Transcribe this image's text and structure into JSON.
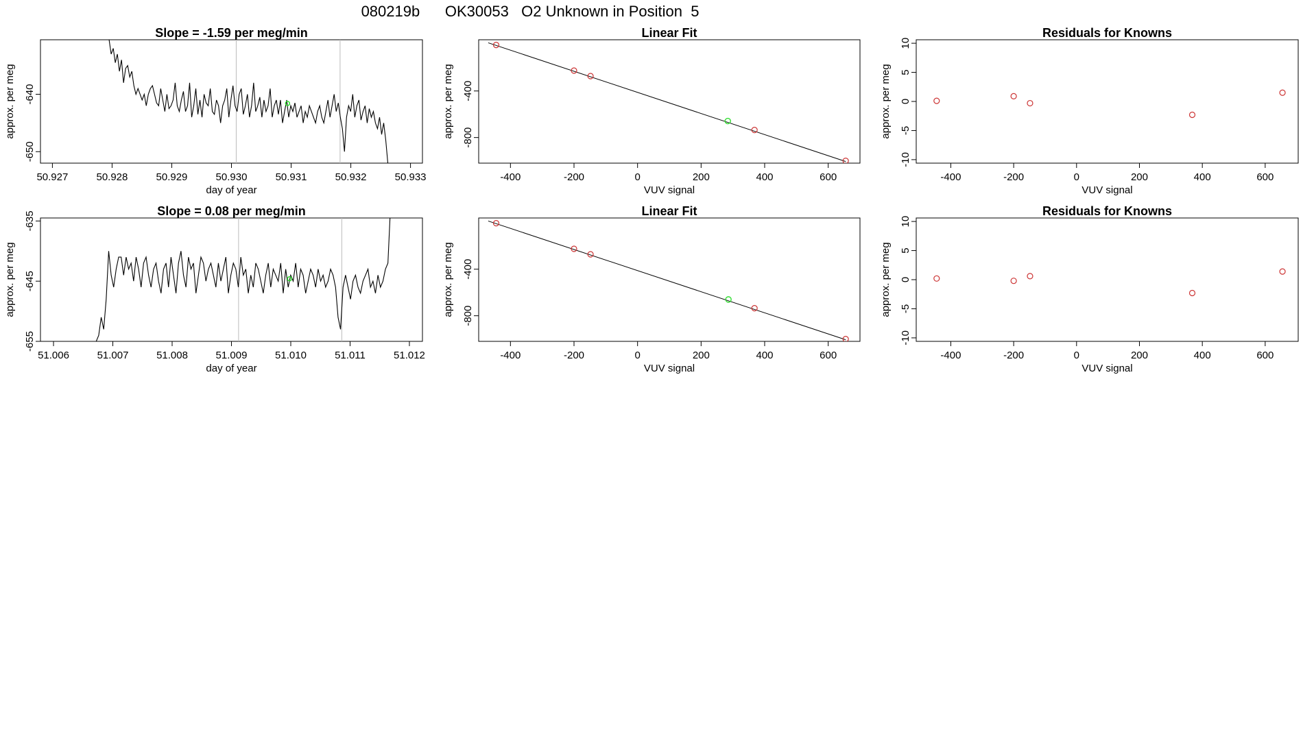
{
  "figure_title": "080219b      OK30053   O2 Unknown in Position  5",
  "colors": {
    "line": "#000000",
    "known": "#cc3333",
    "unknown": "#33dd33",
    "event_line": "#bbbbbb",
    "fit_line": "#000000"
  },
  "chart_data": [
    {
      "id": "ts1",
      "type": "line",
      "title": "Slope =  -1.59  per meg/min",
      "xlabel": "day of year",
      "ylabel": "approx. per meg",
      "xlim": [
        50.9268,
        50.9332
      ],
      "ylim": [
        -652,
        -630.5
      ],
      "xticks": [
        "50.927",
        "50.928",
        "50.929",
        "50.930",
        "50.931",
        "50.932",
        "50.933"
      ],
      "yticks": [
        "-640",
        "-650"
      ],
      "event_lines_x": [
        50.93008,
        50.93182
      ],
      "unknown_marker": {
        "x": 50.93094,
        "y": -641.6
      },
      "series": [
        {
          "x_start": 50.92795,
          "x_end": 50.93262,
          "values": [
            -630.5,
            -633,
            -632,
            -634.5,
            -633,
            -636,
            -634,
            -638,
            -635.5,
            -635,
            -637,
            -636,
            -638.5,
            -640,
            -639,
            -640,
            -641,
            -640,
            -642,
            -640,
            -639,
            -638.5,
            -640,
            -641.5,
            -642,
            -639,
            -641,
            -643,
            -640,
            -642.5,
            -642,
            -641,
            -638,
            -642,
            -643,
            -641,
            -639.5,
            -643,
            -642,
            -638,
            -644,
            -642,
            -639,
            -643.5,
            -641,
            -644,
            -640,
            -641.5,
            -642,
            -639,
            -643,
            -643.5,
            -641,
            -642,
            -645,
            -642,
            -641,
            -639,
            -644,
            -641,
            -638.5,
            -642,
            -643,
            -640,
            -639,
            -643.5,
            -642,
            -640,
            -644,
            -642,
            -638,
            -643,
            -642,
            -640.5,
            -644,
            -641,
            -643,
            -642,
            -639,
            -644,
            -642,
            -641,
            -643.5,
            -641,
            -645,
            -643,
            -641,
            -644,
            -642,
            -643,
            -641.5,
            -644,
            -643,
            -642,
            -645,
            -643,
            -644,
            -642,
            -643,
            -644,
            -645,
            -643,
            -642,
            -644,
            -645,
            -643,
            -641,
            -644,
            -642,
            -640,
            -643,
            -641.5,
            -644,
            -646,
            -650,
            -644,
            -642,
            -643,
            -640,
            -644,
            -642,
            -641,
            -644.5,
            -643,
            -642,
            -645,
            -642.5,
            -644,
            -643,
            -645,
            -646,
            -644,
            -647,
            -645,
            -648,
            -652
          ]
        }
      ]
    },
    {
      "id": "fit1",
      "type": "scatter",
      "title": "Linear Fit",
      "xlabel": "VUV signal",
      "ylabel": "approx. per meg",
      "xlim": [
        -500,
        700
      ],
      "ylim": [
        -1020,
        40
      ],
      "xticks": [
        "-400",
        "-200",
        "0",
        "200",
        "400",
        "600"
      ],
      "yticks": [
        "-400",
        "-800"
      ],
      "fit_line": {
        "x": [
          -470,
          655
        ],
        "y": [
          14,
          -1006
        ]
      },
      "known_points": {
        "x": [
          -445,
          -200,
          -148,
          368,
          655
        ],
        "y": [
          -5,
          -225,
          -272,
          -735,
          -1000
        ]
      },
      "unknown_points": {
        "x": [
          284
        ],
        "y": [
          -658
        ]
      }
    },
    {
      "id": "res1",
      "type": "scatter",
      "title": "Residuals for Knowns",
      "xlabel": "VUV signal",
      "ylabel": "approx. per meg",
      "xlim": [
        -510,
        705
      ],
      "ylim": [
        -10.6,
        10.6
      ],
      "xticks": [
        "-400",
        "-200",
        "0",
        "200",
        "400",
        "600"
      ],
      "yticks": [
        "10",
        "5",
        "0",
        "-5",
        "-10"
      ],
      "known_points": {
        "x": [
          -445,
          -200,
          -148,
          368,
          655
        ],
        "y": [
          0.1,
          0.9,
          -0.3,
          -2.3,
          1.5
        ]
      }
    },
    {
      "id": "ts2",
      "type": "line",
      "title": "Slope =  0.08  per meg/min",
      "xlabel": "day of year",
      "ylabel": "approx. per meg",
      "xlim": [
        51.00578,
        51.01222
      ],
      "ylim": [
        -655,
        -634.5
      ],
      "xticks": [
        "51.006",
        "51.007",
        "51.008",
        "51.009",
        "51.010",
        "51.011",
        "51.012"
      ],
      "yticks": [
        "-635",
        "-645",
        "-655"
      ],
      "event_lines_x": [
        51.00912,
        51.01086
      ],
      "unknown_marker": {
        "x": 51.00998,
        "y": -644.6
      },
      "series": [
        {
          "x_start": 51.00672,
          "x_end": 51.01168,
          "values": [
            -655,
            -654,
            -651,
            -653,
            -648,
            -640,
            -644,
            -646,
            -643,
            -641,
            -641,
            -644,
            -641,
            -643,
            -642,
            -645,
            -641,
            -643,
            -646,
            -642,
            -641,
            -644,
            -646,
            -643,
            -642,
            -645,
            -647,
            -643,
            -642,
            -646,
            -641,
            -644,
            -647,
            -642,
            -640,
            -644,
            -646,
            -641,
            -643,
            -642,
            -647,
            -644,
            -641,
            -642,
            -645,
            -643,
            -642,
            -644,
            -646,
            -642,
            -645,
            -643,
            -641,
            -647,
            -644,
            -642,
            -643,
            -646,
            -641,
            -644,
            -643,
            -647,
            -644,
            -646,
            -642,
            -643,
            -645,
            -647,
            -644,
            -642,
            -646,
            -643,
            -644,
            -645,
            -642,
            -647,
            -643,
            -646,
            -644,
            -645,
            -642,
            -646,
            -643,
            -644,
            -647,
            -645,
            -643,
            -644,
            -646,
            -643,
            -645,
            -644,
            -646,
            -645,
            -643,
            -644,
            -646,
            -651,
            -653,
            -646,
            -644,
            -646,
            -648,
            -645,
            -644,
            -646,
            -647,
            -645,
            -644,
            -643,
            -646,
            -645,
            -647,
            -644,
            -646,
            -645,
            -643,
            -642,
            -633
          ]
        }
      ]
    },
    {
      "id": "fit2",
      "type": "scatter",
      "title": "Linear Fit",
      "xlabel": "VUV signal",
      "ylabel": "approx. per meg",
      "xlim": [
        -500,
        700
      ],
      "ylim": [
        -1020,
        40
      ],
      "xticks": [
        "-400",
        "-200",
        "0",
        "200",
        "400",
        "600"
      ],
      "yticks": [
        "-400",
        "-800"
      ],
      "fit_line": {
        "x": [
          -470,
          655
        ],
        "y": [
          14,
          -1006
        ]
      },
      "known_points": {
        "x": [
          -445,
          -200,
          -148,
          368,
          655
        ],
        "y": [
          -5,
          -225,
          -272,
          -735,
          -1000
        ]
      },
      "unknown_points": {
        "x": [
          286
        ],
        "y": [
          -660
        ]
      }
    },
    {
      "id": "res2",
      "type": "scatter",
      "title": "Residuals for Knowns",
      "xlabel": "VUV signal",
      "ylabel": "approx. per meg",
      "xlim": [
        -510,
        705
      ],
      "ylim": [
        -10.6,
        10.6
      ],
      "xticks": [
        "-400",
        "-200",
        "0",
        "200",
        "400",
        "600"
      ],
      "yticks": [
        "10",
        "5",
        "0",
        "-5",
        "-10"
      ],
      "known_points": {
        "x": [
          -445,
          -200,
          -148,
          368,
          655
        ],
        "y": [
          0.2,
          -0.2,
          0.6,
          -2.3,
          1.4
        ]
      }
    }
  ]
}
